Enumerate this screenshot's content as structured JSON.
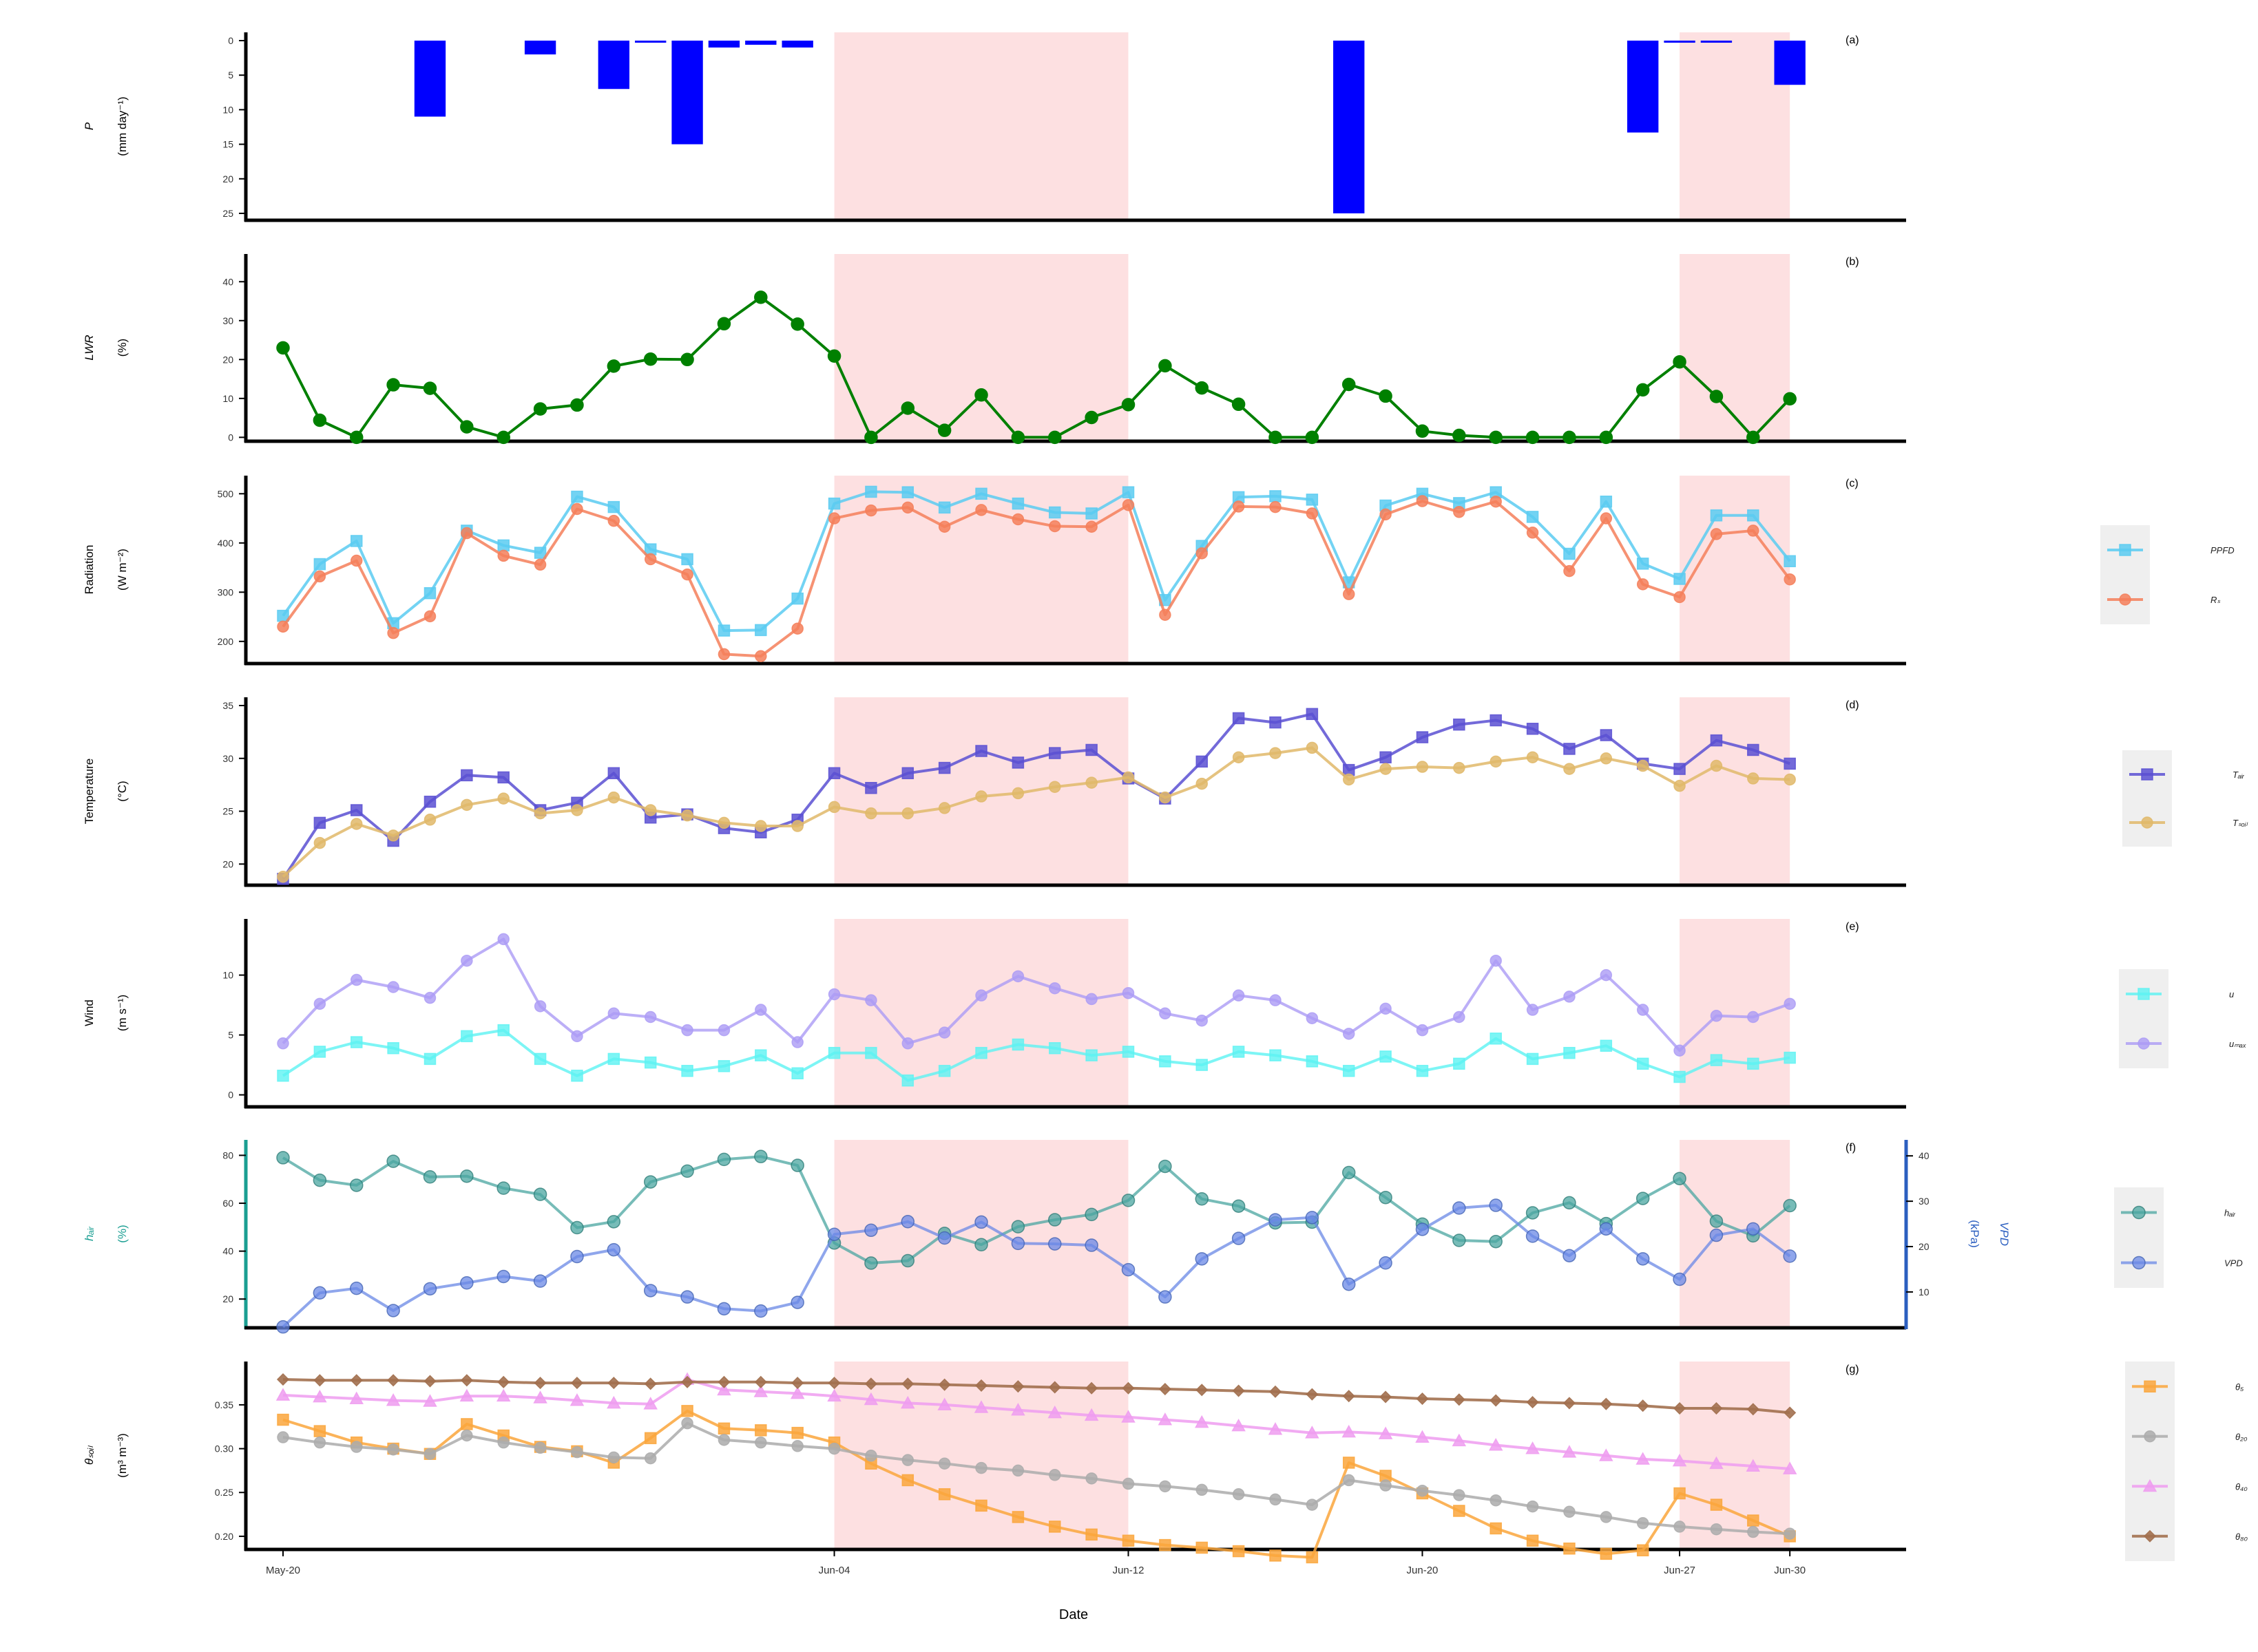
{
  "figure": {
    "xlabel": "Date"
  },
  "colors": {
    "shade": "#FDE0E1",
    "precip": "#0000FF",
    "lwr": "#008000",
    "ppfd": "#5BCBF1",
    "rs": "#F57F5B",
    "tair": "#5A50D2",
    "tsoil": "#E0B86A",
    "u": "#5CF3F3",
    "umax": "#AB9BF5",
    "hair": "#4AA6A0",
    "vpd": "#6A88E5",
    "hair_axis": "#1A9E92",
    "vpd_axis": "#2C5FC0",
    "th5": "#FAA63C",
    "th20": "#ABABAB",
    "th40": "#EE9CF0",
    "th80": "#A2704F"
  },
  "chart_data": {
    "type": "line",
    "x": [
      "2024-05-20",
      "2024-05-21",
      "2024-05-22",
      "2024-05-23",
      "2024-05-24",
      "2024-05-25",
      "2024-05-26",
      "2024-05-27",
      "2024-05-28",
      "2024-05-29",
      "2024-05-30",
      "2024-05-31",
      "2024-06-01",
      "2024-06-02",
      "2024-06-03",
      "2024-06-04",
      "2024-06-05",
      "2024-06-06",
      "2024-06-07",
      "2024-06-08",
      "2024-06-09",
      "2024-06-10",
      "2024-06-11",
      "2024-06-12",
      "2024-06-13",
      "2024-06-14",
      "2024-06-15",
      "2024-06-16",
      "2024-06-17",
      "2024-06-18",
      "2024-06-19",
      "2024-06-20",
      "2024-06-21",
      "2024-06-22",
      "2024-06-23",
      "2024-06-24",
      "2024-06-25",
      "2024-06-26",
      "2024-06-27",
      "2024-06-28",
      "2024-06-29",
      "2024-06-30"
    ],
    "x_ticks": [
      "May-20",
      "Jun-04",
      "Jun-12",
      "Jun-20",
      "Jun-27",
      "Jun-30"
    ],
    "xlabel": "Date",
    "shaded_periods": [
      [
        "Jun-04",
        "Jun-12"
      ],
      [
        "Jun-27",
        "Jun-30"
      ]
    ],
    "panels": [
      {
        "id": "a",
        "tag": "(a)",
        "type": "bar",
        "inverted": true,
        "ylabel": [
          "P",
          "(mm day⁻¹)"
        ],
        "ylim": [
          0,
          26
        ],
        "yticks": [
          "0",
          "5",
          "10",
          "15",
          "20",
          "25"
        ],
        "series": [
          {
            "values": [
              0,
              0,
              0,
              0,
              11,
              0,
              0,
              2,
              0,
              7,
              0.3,
              15,
              1,
              0.6,
              1,
              0,
              0,
              0,
              0,
              0,
              0,
              0,
              0,
              0,
              0,
              0,
              0,
              0,
              0,
              25,
              0,
              0,
              0,
              0,
              0,
              0,
              0,
              13.3,
              0.3,
              0.3,
              0,
              6.4
            ]
          }
        ]
      },
      {
        "id": "b",
        "tag": "(b)",
        "ylabel": [
          "LWR",
          "(%)"
        ],
        "ylim": [
          -1,
          45
        ],
        "yticks": [
          "0",
          "10",
          "20",
          "30",
          "40"
        ],
        "series": [
          {
            "values": [
              23,
              4.4,
              0,
              13.5,
              12.6,
              2.7,
              0,
              7.3,
              8.3,
              18.3,
              20.1,
              20,
              29.2,
              36,
              29.1,
              20.9,
              0,
              7.5,
              1.8,
              10.9,
              0,
              0,
              5.1,
              8.4,
              18.4,
              12.7,
              8.5,
              0,
              0,
              13.6,
              10.6,
              1.6,
              0.5,
              0,
              0,
              0,
              0,
              12.2,
              19.4,
              10.5,
              0,
              9.9
            ]
          }
        ]
      },
      {
        "id": "c",
        "tag": "(c)",
        "ylabel": [
          "Radiation",
          "(W m⁻²)"
        ],
        "ylim": [
          155,
          520
        ],
        "yticks": [
          "200",
          "300",
          "400",
          "500"
        ],
        "legend": [
          "PPFD",
          "Rₛ"
        ],
        "series": [
          {
            "name": "PPFD",
            "values": [
              252,
              357,
              404,
              237,
              298,
              425,
              395,
              380,
              494,
              473,
              387,
              367,
              222,
              223,
              287,
              480,
              504,
              503,
              472,
              500,
              480,
              462,
              460,
              503,
              284,
              394,
              493,
              495,
              488,
              320,
              476,
              500,
              481,
              503,
              453,
              378,
              484,
              358,
              327,
              456,
              456,
              363
            ]
          },
          {
            "name": "Rₛ",
            "values": [
              230,
              332,
              364,
              217,
              251,
              420,
              374,
              356,
              469,
              445,
              367,
              336,
              174,
              170,
              226,
              450,
              466,
              472,
              433,
              467,
              448,
              434,
              433,
              477,
              254,
              379,
              474,
              473,
              460,
              296,
              458,
              485,
              463,
              484,
              421,
              343,
              450,
              316,
              290,
              418,
              425,
              326
            ]
          }
        ]
      },
      {
        "id": "d",
        "tag": "(d)",
        "ylabel": [
          "Temperature",
          "(°C)"
        ],
        "ylim": [
          18,
          35
        ],
        "yticks": [
          "20",
          "25",
          "30",
          "35"
        ],
        "legend": [
          "Tₐᵢᵣ",
          "Tₛₒᵢₗ"
        ],
        "series": [
          {
            "name": "Tₐᵢᵣ",
            "values": [
              18.6,
              23.9,
              25.1,
              22.2,
              25.9,
              28.4,
              28.2,
              25.1,
              25.8,
              28.6,
              24.4,
              24.7,
              23.4,
              23,
              24.2,
              28.6,
              27.2,
              28.6,
              29.1,
              30.7,
              29.6,
              30.5,
              30.8,
              28.1,
              26.2,
              29.7,
              33.8,
              33.4,
              34.2,
              28.9,
              30.1,
              32,
              33.2,
              33.6,
              32.8,
              30.9,
              32.2,
              29.5,
              29,
              31.7,
              30.8,
              29.5
            ]
          },
          {
            "name": "Tₛₒᵢₗ",
            "values": [
              18.8,
              22,
              23.8,
              22.7,
              24.2,
              25.6,
              26.2,
              24.8,
              25.1,
              26.3,
              25.1,
              24.6,
              23.9,
              23.6,
              23.6,
              25.4,
              24.8,
              24.8,
              25.3,
              26.4,
              26.7,
              27.3,
              27.7,
              28.2,
              26.3,
              27.6,
              30.1,
              30.5,
              31,
              28,
              29,
              29.2,
              29.1,
              29.7,
              30.1,
              29,
              30,
              29.3,
              27.4,
              29.3,
              28.1,
              28
            ]
          }
        ]
      },
      {
        "id": "e",
        "tag": "(e)",
        "ylabel": [
          "Wind",
          "(m s⁻¹)"
        ],
        "ylim": [
          -1,
          14
        ],
        "yticks": [
          "0",
          "5",
          "10"
        ],
        "legend": [
          "u",
          "uₘₐₓ"
        ],
        "series": [
          {
            "name": "u",
            "values": [
              1.6,
              3.6,
              4.4,
              3.9,
              3,
              4.9,
              5.4,
              3,
              1.6,
              3,
              2.7,
              2,
              2.4,
              3.3,
              1.8,
              3.5,
              3.5,
              1.2,
              2,
              3.5,
              4.2,
              3.9,
              3.3,
              3.6,
              2.8,
              2.5,
              3.6,
              3.3,
              2.8,
              2,
              3.2,
              2,
              2.6,
              4.7,
              3,
              3.5,
              4.1,
              2.6,
              1.5,
              2.9,
              2.6,
              3.1
            ]
          },
          {
            "name": "uₘₐₓ",
            "values": [
              4.3,
              7.6,
              9.6,
              9,
              8.1,
              11.2,
              13,
              7.4,
              4.9,
              6.8,
              6.5,
              5.4,
              5.4,
              7.1,
              4.4,
              8.4,
              7.9,
              4.3,
              5.2,
              8.3,
              9.9,
              8.9,
              8,
              8.5,
              6.8,
              6.2,
              8.3,
              7.9,
              6.4,
              5.1,
              7.2,
              5.4,
              6.5,
              11.2,
              7.1,
              8.2,
              10,
              7.1,
              3.7,
              6.6,
              6.5,
              7.6
            ]
          }
        ]
      },
      {
        "id": "f",
        "tag": "(f)",
        "ylabel": [
          "hₐᵢᵣ",
          "(%)"
        ],
        "ylabel_right": [
          "VPD",
          "(kPa)"
        ],
        "ylim": [
          8,
          83
        ],
        "yticks": [
          "20",
          "40",
          "60",
          "80"
        ],
        "ylim_right": [
          2.1,
          41.7
        ],
        "yticks_right": [
          "10",
          "20",
          "30",
          "40"
        ],
        "legend": [
          "hₐᵢᵣ",
          "VPD"
        ],
        "series": [
          {
            "name": "hₐᵢᵣ",
            "axis": "left",
            "values": [
              79,
              69.6,
              67.5,
              77.5,
              71,
              71.3,
              66.3,
              63.7,
              49.8,
              52.3,
              68.9,
              73.4,
              78.3,
              79.5,
              75.8,
              43.4,
              35,
              36,
              47.4,
              42.7,
              50.2,
              53.1,
              55.3,
              61.2,
              75.4,
              61.8,
              58.8,
              51.8,
              52.1,
              72.8,
              62.4,
              51.3,
              44.5,
              44,
              56,
              60.2,
              51.5,
              62,
              70.3,
              52.5,
              46.4,
              59
            ]
          },
          {
            "name": "VPD",
            "axis": "right",
            "values": [
              2.3,
              9.8,
              10.8,
              5.9,
              10.7,
              12,
              13.4,
              12.4,
              17.8,
              19.3,
              10.3,
              8.9,
              6.3,
              5.8,
              7.7,
              22.7,
              23.6,
              25.5,
              21.9,
              25.4,
              20.7,
              20.6,
              20.3,
              14.9,
              8.9,
              17.3,
              21.8,
              25.9,
              26.4,
              11.7,
              16.4,
              23.8,
              28.5,
              29.1,
              22.3,
              18,
              23.9,
              17.3,
              12.8,
              22.5,
              23.9,
              17.9
            ]
          }
        ]
      },
      {
        "id": "g",
        "tag": "(g)",
        "ylabel": [
          "θₛₒᵢₗ",
          "(m³ m⁻³)"
        ],
        "ylim": [
          0.185,
          0.39
        ],
        "yticks": [
          "0.20",
          "0.25",
          "0.30",
          "0.35"
        ],
        "legend": [
          "θ₅",
          "θ₂₀",
          "θ₄₀",
          "θ₈₀"
        ],
        "series": [
          {
            "name": "θ₅",
            "values": [
              0.333,
              0.32,
              0.307,
              0.3,
              0.294,
              0.328,
              0.315,
              0.302,
              0.297,
              0.284,
              0.312,
              0.343,
              0.323,
              0.321,
              0.318,
              0.307,
              0.283,
              0.264,
              0.248,
              0.235,
              0.222,
              0.211,
              0.202,
              0.195,
              0.19,
              0.187,
              0.183,
              0.178,
              0.176,
              0.284,
              0.269,
              0.249,
              0.229,
              0.209,
              0.195,
              0.186,
              0.18,
              0.184,
              0.249,
              0.236,
              0.218,
              0.2
            ]
          },
          {
            "name": "θ₂₀",
            "values": [
              0.313,
              0.307,
              0.302,
              0.299,
              0.294,
              0.315,
              0.307,
              0.301,
              0.296,
              0.29,
              0.289,
              0.329,
              0.31,
              0.307,
              0.303,
              0.3,
              0.292,
              0.287,
              0.283,
              0.278,
              0.275,
              0.27,
              0.266,
              0.26,
              0.257,
              0.253,
              0.248,
              0.242,
              0.236,
              0.264,
              0.258,
              0.252,
              0.247,
              0.241,
              0.234,
              0.228,
              0.222,
              0.215,
              0.211,
              0.208,
              0.205,
              0.203
            ]
          },
          {
            "name": "θ₄₀",
            "values": [
              0.361,
              0.359,
              0.357,
              0.355,
              0.354,
              0.36,
              0.36,
              0.358,
              0.355,
              0.352,
              0.351,
              0.379,
              0.367,
              0.365,
              0.363,
              0.36,
              0.356,
              0.352,
              0.35,
              0.347,
              0.344,
              0.341,
              0.338,
              0.336,
              0.333,
              0.33,
              0.326,
              0.322,
              0.318,
              0.319,
              0.317,
              0.313,
              0.309,
              0.304,
              0.3,
              0.296,
              0.292,
              0.288,
              0.286,
              0.283,
              0.28,
              0.277
            ]
          },
          {
            "name": "θ₈₀",
            "values": [
              0.379,
              0.378,
              0.378,
              0.378,
              0.377,
              0.378,
              0.376,
              0.375,
              0.375,
              0.375,
              0.374,
              0.376,
              0.376,
              0.376,
              0.375,
              0.375,
              0.374,
              0.374,
              0.373,
              0.372,
              0.371,
              0.37,
              0.369,
              0.369,
              0.368,
              0.367,
              0.366,
              0.365,
              0.362,
              0.36,
              0.359,
              0.357,
              0.356,
              0.355,
              0.353,
              0.352,
              0.351,
              0.349,
              0.346,
              0.346,
              0.345,
              0.341
            ]
          }
        ]
      }
    ]
  }
}
